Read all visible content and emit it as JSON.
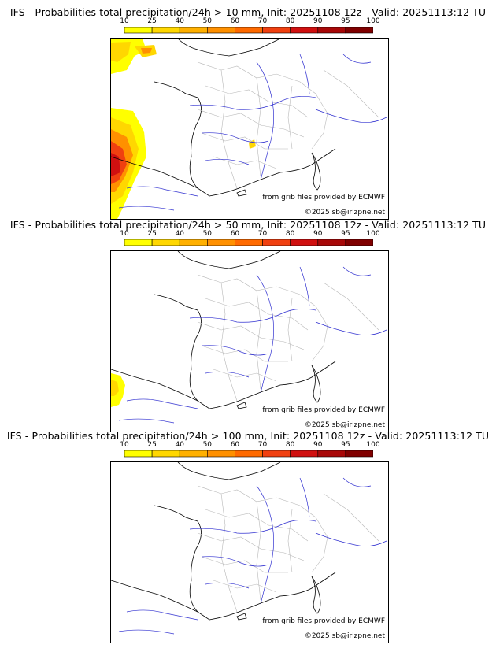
{
  "panels": [
    {
      "title": "IFS - Probabilities total precipitation/24h > 10 mm, Init: 20251108 12z - Valid: 20251113:12 TU",
      "credit_source": "from grib files provided by ECMWF",
      "credit_copyright": "©2025 sb@irizpne.net",
      "shows_copyright": true
    },
    {
      "title": "IFS - Probabilities total precipitation/24h > 50 mm, Init: 20251108 12z - Valid: 20251113:12 TU",
      "credit_source": "from grib files provided by ECMWF",
      "credit_copyright": "©2025 sb@irizpne.net",
      "shows_copyright": true
    },
    {
      "title": "IFS - Probabilities total precipitation/24h > 100 mm, Init: 20251108 12z - Valid: 20251113:12 TU",
      "credit_source": "from grib files provided by ECMWF",
      "credit_copyright": "©2025 sb@irizpne.net",
      "shows_copyright": true
    }
  ],
  "colorbar": {
    "ticks": [
      "10",
      "25",
      "40",
      "50",
      "60",
      "70",
      "80",
      "90",
      "95",
      "100"
    ],
    "colors": [
      "#ffff00",
      "#ffd700",
      "#ffb000",
      "#ff9000",
      "#ff6a00",
      "#f04010",
      "#d01010",
      "#a80808",
      "#800000"
    ]
  }
}
